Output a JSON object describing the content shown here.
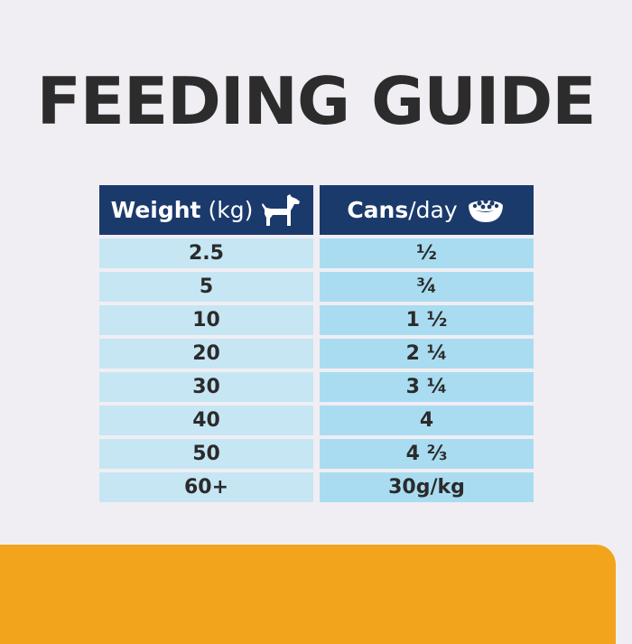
{
  "title": "FEEDING GUIDE",
  "header": {
    "weight_bold": "Weight",
    "weight_unit": "(kg)",
    "cans_bold": "Cans",
    "cans_unit": "/day",
    "weight_icon": "dog-icon",
    "cans_icon": "food-bowl-icon"
  },
  "rows": [
    {
      "weight": "2.5",
      "cans": "½"
    },
    {
      "weight": "5",
      "cans": "¾"
    },
    {
      "weight": "10",
      "cans": "1 ½"
    },
    {
      "weight": "20",
      "cans": "2 ¼"
    },
    {
      "weight": "30",
      "cans": "3 ¼"
    },
    {
      "weight": "40",
      "cans": "4"
    },
    {
      "weight": "50",
      "cans": "4 ⅔"
    },
    {
      "weight": "60+",
      "cans": "30g/kg"
    }
  ],
  "colors": {
    "header_bg": "#1b3a6c",
    "weight_cell_bg": "#c6e6f4",
    "cans_cell_bg": "#a9dcf0",
    "accent_band": "#f2a41c"
  }
}
